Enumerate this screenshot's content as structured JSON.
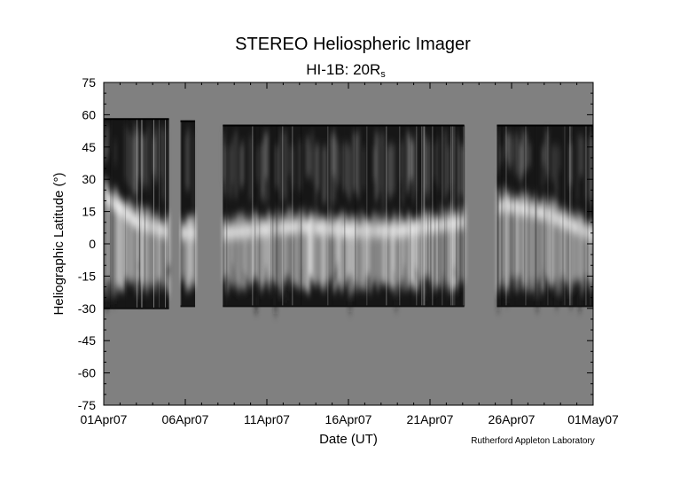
{
  "chart_data": {
    "type": "heatmap",
    "title": "STEREO Heliospheric Imager",
    "subtitle": {
      "main": "HI-1B: 20R",
      "subscript": "s"
    },
    "xlabel": "Date (UT)",
    "ylabel": "Heliographic Latitude (°)",
    "credit": "Rutherford Appleton Laboratory",
    "x_day_range": [
      0,
      30
    ],
    "ylim": [
      -75,
      75
    ],
    "x_ticks": [
      {
        "day": 0,
        "label": "01Apr07"
      },
      {
        "day": 5,
        "label": "06Apr07"
      },
      {
        "day": 10,
        "label": "11Apr07"
      },
      {
        "day": 15,
        "label": "16Apr07"
      },
      {
        "day": 20,
        "label": "21Apr07"
      },
      {
        "day": 25,
        "label": "26Apr07"
      },
      {
        "day": 30,
        "label": "01May07"
      }
    ],
    "y_ticks": [
      75,
      60,
      45,
      30,
      15,
      0,
      -15,
      -30,
      -45,
      -60,
      -75
    ],
    "background_color": "#808080",
    "data_segments": [
      {
        "start_day": 0.0,
        "end_day": 4.0,
        "lat_max": 58,
        "lat_min": -30
      },
      {
        "start_day": 4.7,
        "end_day": 5.6,
        "lat_max": 57,
        "lat_min": -29
      },
      {
        "start_day": 7.3,
        "end_day": 22.1,
        "lat_max": 55,
        "lat_min": -29
      },
      {
        "start_day": 24.1,
        "end_day": 30.0,
        "lat_max": 55,
        "lat_min": -29
      }
    ],
    "bright_band": [
      {
        "day": 0,
        "lat": 22
      },
      {
        "day": 2,
        "lat": 10
      },
      {
        "day": 4,
        "lat": 5
      },
      {
        "day": 7.5,
        "lat": 5
      },
      {
        "day": 12,
        "lat": 8
      },
      {
        "day": 15,
        "lat": 6
      },
      {
        "day": 18,
        "lat": 6
      },
      {
        "day": 22,
        "lat": 10
      },
      {
        "day": 24.5,
        "lat": 18
      },
      {
        "day": 27,
        "lat": 14
      },
      {
        "day": 30,
        "lat": 4
      }
    ]
  }
}
